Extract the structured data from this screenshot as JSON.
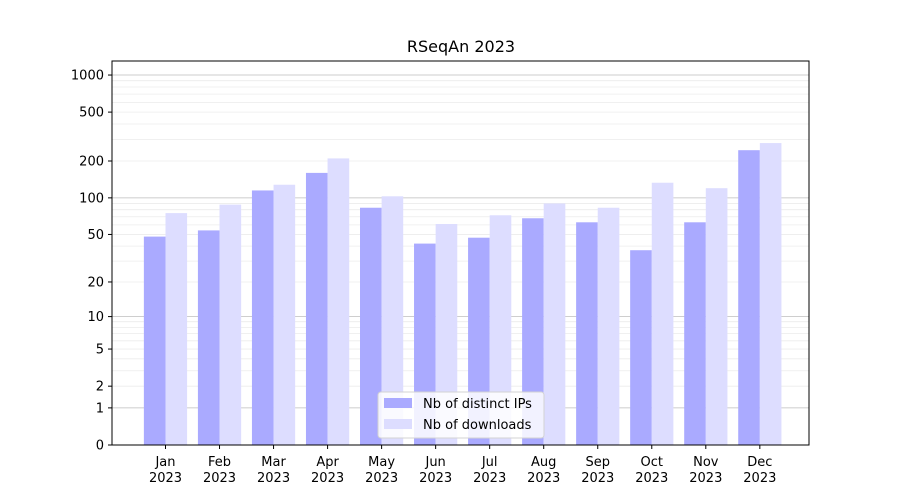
{
  "chart_data": {
    "type": "bar",
    "title": "RSeqAn 2023",
    "xlabel": "",
    "ylabel": "",
    "yscale": "symlog",
    "ylim": [
      0,
      1300
    ],
    "yticks": [
      0,
      1,
      2,
      5,
      10,
      20,
      50,
      100,
      200,
      500,
      1000
    ],
    "ytick_labels": [
      "0",
      "1",
      "2",
      "5",
      "10",
      "20",
      "50",
      "100",
      "200",
      "500",
      "1000"
    ],
    "grid": "horizontal",
    "legend_position": "bottom-center",
    "categories": [
      "Jan\n2023",
      "Feb\n2023",
      "Mar\n2023",
      "Apr\n2023",
      "May\n2023",
      "Jun\n2023",
      "Jul\n2023",
      "Aug\n2023",
      "Sep\n2023",
      "Oct\n2023",
      "Nov\n2023",
      "Dec\n2023"
    ],
    "series": [
      {
        "name": "Nb of distinct IPs",
        "color": "#aaaaff",
        "values": [
          48,
          54,
          115,
          160,
          83,
          42,
          47,
          68,
          63,
          37,
          63,
          245
        ]
      },
      {
        "name": "Nb of downloads",
        "color": "#ddddff",
        "values": [
          75,
          88,
          128,
          210,
          103,
          61,
          72,
          90,
          83,
          133,
          120,
          280
        ]
      }
    ]
  }
}
